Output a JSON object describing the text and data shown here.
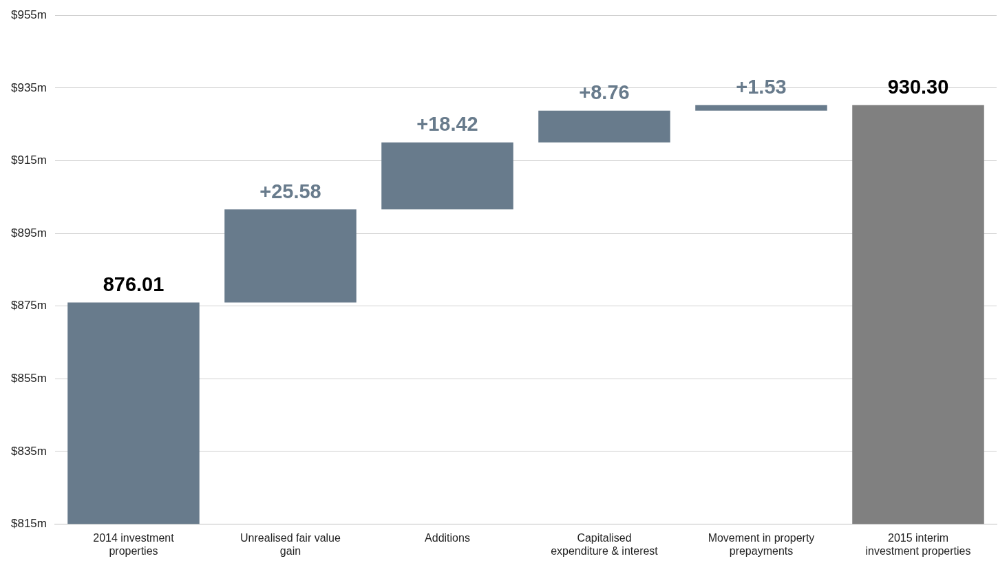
{
  "chart_data": {
    "type": "bar",
    "categories": [
      "2014 investment properties",
      "Unrealised fair value gain",
      "Additions",
      "Capitalised expenditure & interest",
      "Movement in property prepayments",
      "2015 interim investment properties"
    ],
    "values": [
      876.01,
      25.58,
      18.42,
      8.76,
      1.53,
      930.3
    ],
    "base": [
      null,
      876.01,
      901.59,
      920.01,
      928.77,
      null
    ],
    "value_labels": [
      "876.01",
      "+25.58",
      "+18.42",
      "+8.76",
      "+1.53",
      "930.30"
    ],
    "colors": [
      "#687b8c",
      "#687b8c",
      "#687b8c",
      "#687b8c",
      "#687b8c",
      "#808080"
    ],
    "ylim": [
      815,
      955
    ],
    "yticks": [
      {
        "value": 815,
        "label": "$815m"
      },
      {
        "value": 835,
        "label": "$835m"
      },
      {
        "value": 855,
        "label": "$855m"
      },
      {
        "value": 875,
        "label": "$875m"
      },
      {
        "value": 895,
        "label": "$895m"
      },
      {
        "value": 915,
        "label": "$915m"
      },
      {
        "value": 935,
        "label": "$935m"
      },
      {
        "value": 955,
        "label": "$955m"
      }
    ],
    "grid": "y",
    "legend": false
  }
}
